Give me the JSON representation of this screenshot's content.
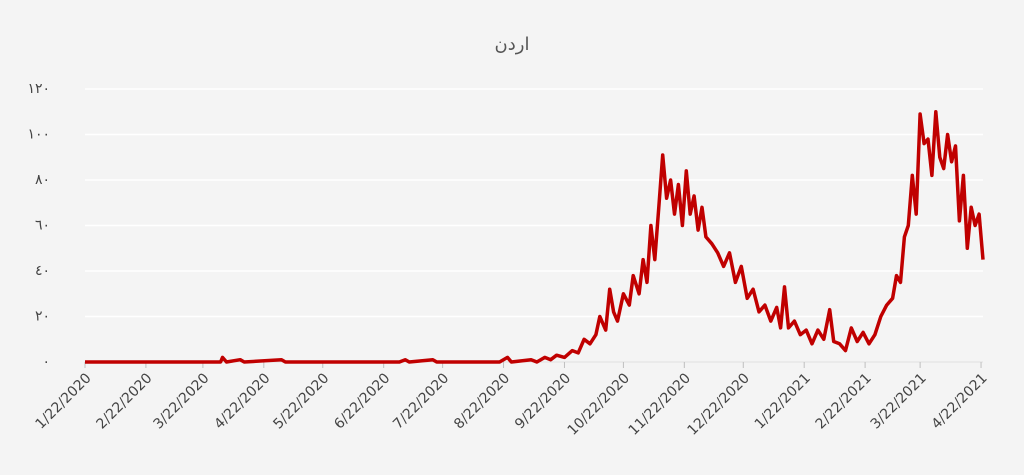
{
  "chart_data": {
    "type": "line",
    "title": "اردن",
    "x": [
      "1/22/2020",
      "2/22/2020",
      "3/22/2020",
      "3/31/2020",
      "4/1/2020",
      "4/3/2020",
      "4/10/2020",
      "4/12/2020",
      "5/1/2020",
      "5/3/2020",
      "6/30/2020",
      "7/3/2020",
      "7/5/2020",
      "7/17/2020",
      "7/19/2020",
      "8/20/2020",
      "8/24/2020",
      "8/26/2020",
      "9/5/2020",
      "9/8/2020",
      "9/12/2020",
      "9/15/2020",
      "9/18/2020",
      "9/22/2020",
      "9/26/2020",
      "9/29/2020",
      "10/2/2020",
      "10/5/2020",
      "10/8/2020",
      "10/10/2020",
      "10/13/2020",
      "10/15/2020",
      "10/17/2020",
      "10/19/2020",
      "10/22/2020",
      "10/25/2020",
      "10/27/2020",
      "10/30/2020",
      "11/1/2020",
      "11/3/2020",
      "11/5/2020",
      "11/7/2020",
      "11/9/2020",
      "11/11/2020",
      "11/13/2020",
      "11/15/2020",
      "11/17/2020",
      "11/19/2020",
      "11/21/2020",
      "11/23/2020",
      "11/25/2020",
      "11/27/2020",
      "11/29/2020",
      "12/1/2020",
      "12/3/2020",
      "12/6/2020",
      "12/9/2020",
      "12/12/2020",
      "12/15/2020",
      "12/18/2020",
      "12/21/2020",
      "12/24/2020",
      "12/27/2020",
      "12/30/2020",
      "1/2/2021",
      "1/5/2021",
      "1/8/2021",
      "1/10/2021",
      "1/12/2021",
      "1/14/2021",
      "1/17/2021",
      "1/20/2021",
      "1/23/2021",
      "1/26/2021",
      "1/29/2021",
      "2/1/2021",
      "2/4/2021",
      "2/6/2021",
      "2/9/2021",
      "2/12/2021",
      "2/15/2021",
      "2/18/2021",
      "2/21/2021",
      "2/24/2021",
      "2/27/2021",
      "3/2/2021",
      "3/5/2021",
      "3/8/2021",
      "3/10/2021",
      "3/12/2021",
      "3/14/2021",
      "3/16/2021",
      "3/18/2021",
      "3/20/2021",
      "3/22/2021",
      "3/24/2021",
      "3/26/2021",
      "3/28/2021",
      "3/30/2021",
      "4/1/2021",
      "4/3/2021",
      "4/5/2021",
      "4/7/2021",
      "4/9/2021",
      "4/11/2021",
      "4/13/2021",
      "4/15/2021",
      "4/17/2021",
      "4/19/2021",
      "4/21/2021",
      "4/23/2021"
    ],
    "series": [
      {
        "name": "اردن",
        "color": "#c00000",
        "values": [
          0,
          0,
          0,
          0,
          2,
          0,
          1,
          0,
          1,
          0,
          0,
          1,
          0,
          1,
          0,
          0,
          2,
          0,
          1,
          0,
          2,
          1,
          3,
          2,
          5,
          4,
          10,
          8,
          12,
          20,
          14,
          32,
          22,
          18,
          30,
          25,
          38,
          30,
          45,
          35,
          60,
          45,
          68,
          91,
          72,
          80,
          65,
          78,
          60,
          84,
          65,
          73,
          58,
          68,
          55,
          52,
          48,
          42,
          48,
          35,
          42,
          28,
          32,
          22,
          25,
          18,
          24,
          15,
          33,
          15,
          18,
          12,
          14,
          8,
          14,
          10,
          23,
          9,
          8,
          5,
          15,
          9,
          13,
          8,
          12,
          20,
          25,
          28,
          38,
          35,
          55,
          60,
          82,
          65,
          109,
          96,
          98,
          82,
          110,
          90,
          85,
          100,
          88,
          95,
          62,
          82,
          50,
          68,
          60,
          65,
          45
        ]
      }
    ],
    "xlim": [
      "1/22/2020",
      "4/23/2021"
    ],
    "xticks": [
      "1/22/2020",
      "2/22/2020",
      "3/22/2020",
      "4/22/2020",
      "5/22/2020",
      "6/22/2020",
      "7/22/2020",
      "8/22/2020",
      "9/22/2020",
      "10/22/2020",
      "11/22/2020",
      "12/22/2020",
      "1/22/2021",
      "2/22/2021",
      "3/22/2021",
      "4/22/2021"
    ],
    "ylim": [
      0,
      120
    ],
    "yticks": [
      {
        "value": 0,
        "label": "٠"
      },
      {
        "value": 20,
        "label": "٢٠"
      },
      {
        "value": 40,
        "label": "٤٠"
      },
      {
        "value": 60,
        "label": "٦٠"
      },
      {
        "value": 80,
        "label": "٨٠"
      },
      {
        "value": 100,
        "label": "١٠٠"
      },
      {
        "value": 120,
        "label": "١٢٠"
      }
    ],
    "grid": true
  }
}
